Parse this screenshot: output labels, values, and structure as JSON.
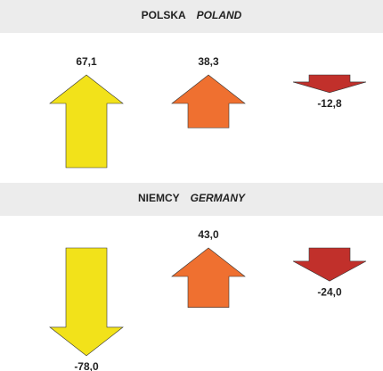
{
  "chart_data": [
    {
      "type": "arrow",
      "title": "POLSKA",
      "title_en": "POLAND",
      "values": [
        67.1,
        38.3,
        -12.8
      ],
      "value_labels": [
        "67,1",
        "38,3",
        "-12,8"
      ],
      "colors": [
        "#f2e21a",
        "#ef7030",
        "#c1302b"
      ]
    },
    {
      "type": "arrow",
      "title": "NIEMCY",
      "title_en": "GERMANY",
      "values": [
        -78.0,
        43.0,
        -24.0
      ],
      "value_labels": [
        "-78,0",
        "43,0",
        "-24,0"
      ],
      "colors": [
        "#f2e21a",
        "#ef7030",
        "#c1302b"
      ]
    }
  ]
}
